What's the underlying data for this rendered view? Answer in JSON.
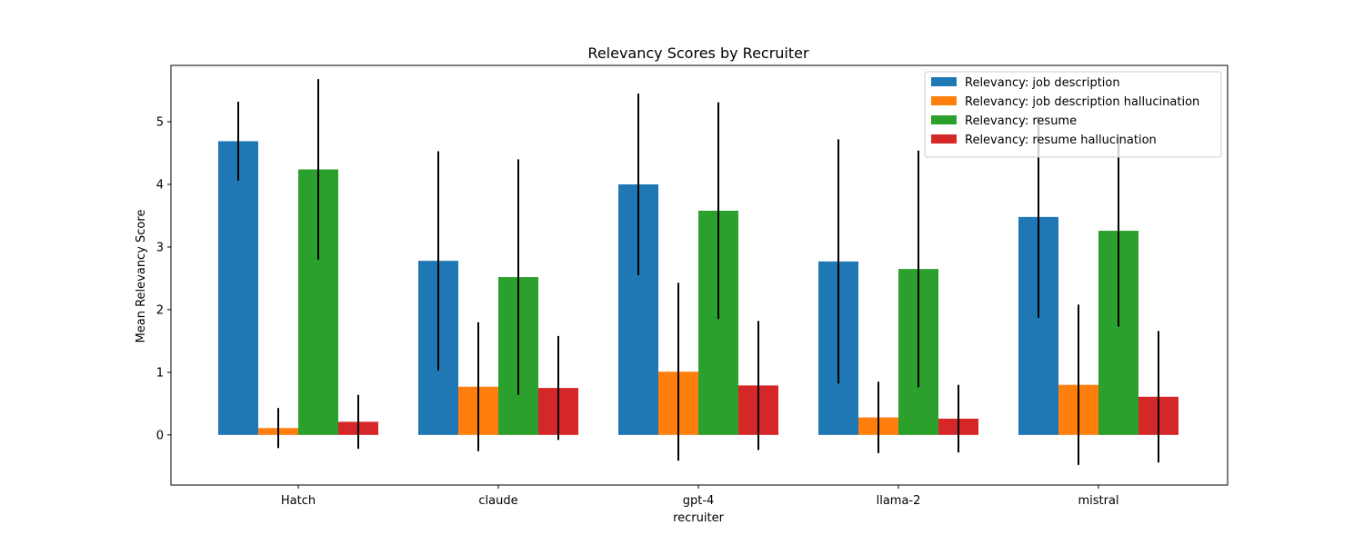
{
  "chart_data": {
    "type": "bar",
    "title": "Relevancy Scores by Recruiter",
    "xlabel": "recruiter",
    "ylabel": "Mean Relevancy Score",
    "categories": [
      "Hatch",
      "claude",
      "gpt-4",
      "llama-2",
      "mistral"
    ],
    "ylim": [
      -0.8,
      5.9
    ],
    "yticks": [
      0,
      1,
      2,
      3,
      4,
      5
    ],
    "grid": false,
    "legend_position": "top-right",
    "series": [
      {
        "name": "Relevancy: job description",
        "color": "#1f77b4",
        "values": [
          4.69,
          2.78,
          4.0,
          2.77,
          3.48
        ],
        "errors": [
          0.63,
          1.75,
          1.45,
          1.95,
          1.61
        ]
      },
      {
        "name": "Relevancy: job description hallucination",
        "color": "#ff7f0e",
        "values": [
          0.11,
          0.77,
          1.01,
          0.28,
          0.8
        ],
        "errors": [
          0.32,
          1.03,
          1.42,
          0.57,
          1.28
        ]
      },
      {
        "name": "Relevancy: resume",
        "color": "#2ca02c",
        "values": [
          4.24,
          2.52,
          3.58,
          2.65,
          3.26
        ],
        "errors": [
          1.44,
          1.88,
          1.73,
          1.89,
          1.53
        ]
      },
      {
        "name": "Relevancy: resume hallucination",
        "color": "#d62728",
        "values": [
          0.21,
          0.75,
          0.79,
          0.26,
          0.61
        ],
        "errors": [
          0.43,
          0.83,
          1.03,
          0.54,
          1.05
        ]
      }
    ]
  }
}
